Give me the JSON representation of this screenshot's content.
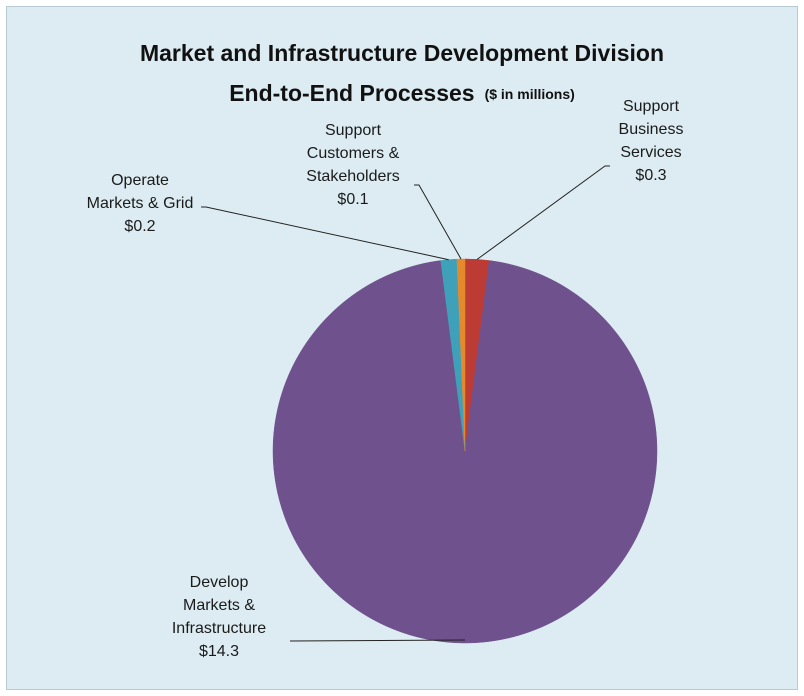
{
  "chart_data": {
    "type": "pie",
    "title": "Market and Infrastructure Development   Division",
    "title_line2": "End-to-End Processes",
    "subtitle": "($ in millions)",
    "slices": [
      {
        "label_lines": [
          "Develop",
          "Markets &",
          "Infrastructure",
          "$14.3"
        ],
        "name": "Develop Markets & Infrastructure",
        "value": 14.3,
        "color": "#6f528d"
      },
      {
        "label_lines": [
          "Operate",
          "Markets & Grid",
          "$0.2"
        ],
        "name": "Operate Markets & Grid",
        "value": 0.2,
        "color": "#3fa1b9"
      },
      {
        "label_lines": [
          "Support",
          "Customers &",
          "Stakeholders",
          "$0.1"
        ],
        "name": "Support Customers & Stakeholders",
        "value": 0.1,
        "color": "#e48a2c"
      },
      {
        "label_lines": [
          "Support",
          "Business",
          "Services",
          "$0.3"
        ],
        "name": "Support Business Services",
        "value": 0.3,
        "color": "#bd3b35"
      }
    ],
    "legend": "none",
    "data_labels": "outside with leader lines",
    "background": "#dcecf2"
  }
}
